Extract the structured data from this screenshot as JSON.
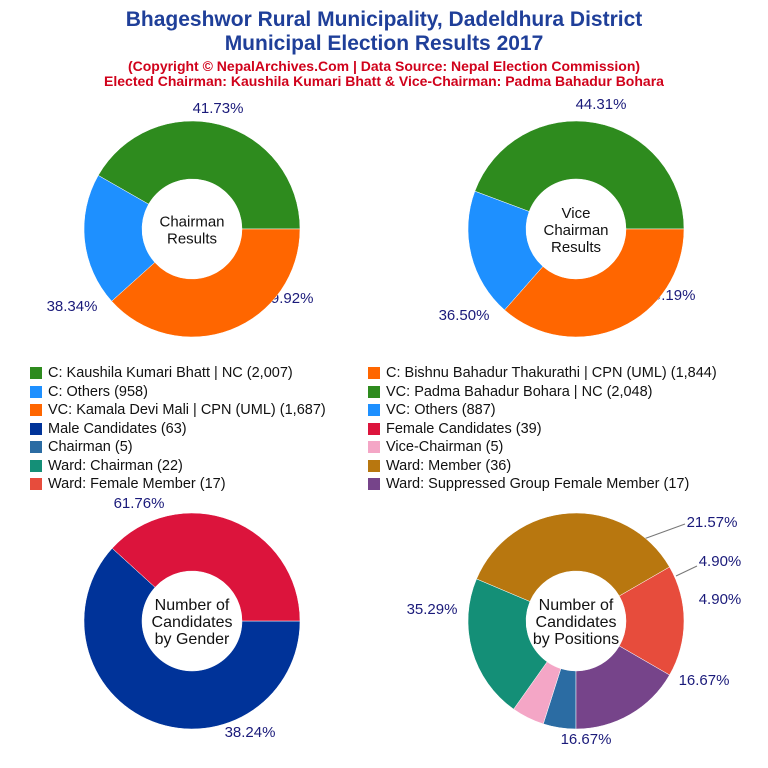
{
  "header": {
    "title_line1": "Bhageshwor Rural Municipality, Dadeldhura District",
    "title_line2": "Municipal Election Results 2017",
    "subtitle_line1": "(Copyright © NepalArchives.Com | Data Source: Nepal Election Commission)",
    "subtitle_line2": "Elected Chairman: Kaushila Kumari Bhatt & Vice-Chairman: Padma Bahadur Bohara"
  },
  "legend": [
    {
      "label": "C: Kaushila Kumari Bhatt | NC (2,007)",
      "color": "#2e8b1e"
    },
    {
      "label": "C: Bishnu Bahadur Thakurathi | CPN (UML) (1,844)",
      "color": "#ff6600"
    },
    {
      "label": "C: Others (958)",
      "color": "#1e90ff"
    },
    {
      "label": "VC: Padma Bahadur Bohara | NC (2,048)",
      "color": "#2e8b1e"
    },
    {
      "label": "VC: Kamala Devi Mali | CPN (UML) (1,687)",
      "color": "#ff6600"
    },
    {
      "label": "VC: Others (887)",
      "color": "#1e90ff"
    },
    {
      "label": "Male Candidates (63)",
      "color": "#003399"
    },
    {
      "label": "Female Candidates (39)",
      "color": "#dc143c"
    },
    {
      "label": "Chairman (5)",
      "color": "#2b6ca3"
    },
    {
      "label": "Vice-Chairman (5)",
      "color": "#f4a6c6"
    },
    {
      "label": "Ward: Chairman (22)",
      "color": "#148f77"
    },
    {
      "label": "Ward: Member (36)",
      "color": "#b8770f"
    },
    {
      "label": "Ward: Female Member (17)",
      "color": "#e74c3c"
    },
    {
      "label": "Ward: Suppressed Group Female Member (17)",
      "color": "#76448a"
    }
  ],
  "chart_data": [
    {
      "type": "pie",
      "center_label": [
        "Chairman",
        "Results"
      ],
      "slices": [
        {
          "label": "C: Kaushila Kumari Bhatt | NC",
          "value": 2007,
          "pct": "41.73%",
          "color": "#2e8b1e"
        },
        {
          "label": "C: Others",
          "value": 958,
          "pct": "19.92%",
          "color": "#1e90ff"
        },
        {
          "label": "C: Bishnu Bahadur Thakurathi | CPN (UML)",
          "value": 1844,
          "pct": "38.34%",
          "color": "#ff6600"
        }
      ]
    },
    {
      "type": "pie",
      "center_label": [
        "Vice",
        "Chairman",
        "Results"
      ],
      "slices": [
        {
          "label": "VC: Padma Bahadur Bohara | NC",
          "value": 2048,
          "pct": "44.31%",
          "color": "#2e8b1e"
        },
        {
          "label": "VC: Others",
          "value": 887,
          "pct": "19.19%",
          "color": "#1e90ff"
        },
        {
          "label": "VC: Kamala Devi Mali | CPN (UML)",
          "value": 1687,
          "pct": "36.50%",
          "color": "#ff6600"
        }
      ]
    },
    {
      "type": "pie",
      "center_label": [
        "Number of",
        "Candidates",
        "by Gender"
      ],
      "slices": [
        {
          "label": "Male Candidates",
          "value": 63,
          "pct": "61.76%",
          "color": "#003399"
        },
        {
          "label": "Female Candidates",
          "value": 39,
          "pct": "38.24%",
          "color": "#dc143c"
        }
      ]
    },
    {
      "type": "pie",
      "center_label": [
        "Number of",
        "Candidates",
        "by Positions"
      ],
      "slices": [
        {
          "label": "Chairman",
          "value": 5,
          "pct": "4.90%",
          "color": "#2b6ca3"
        },
        {
          "label": "Vice-Chairman",
          "value": 5,
          "pct": "4.90%",
          "color": "#f4a6c6"
        },
        {
          "label": "Ward: Chairman",
          "value": 22,
          "pct": "21.57%",
          "color": "#148f77"
        },
        {
          "label": "Ward: Member",
          "value": 36,
          "pct": "35.29%",
          "color": "#b8770f"
        },
        {
          "label": "Ward: Female Member",
          "value": 17,
          "pct": "16.67%",
          "color": "#e74c3c"
        },
        {
          "label": "Ward: Suppressed Group Female Member",
          "value": 17,
          "pct": "16.67%",
          "color": "#76448a"
        }
      ]
    }
  ]
}
